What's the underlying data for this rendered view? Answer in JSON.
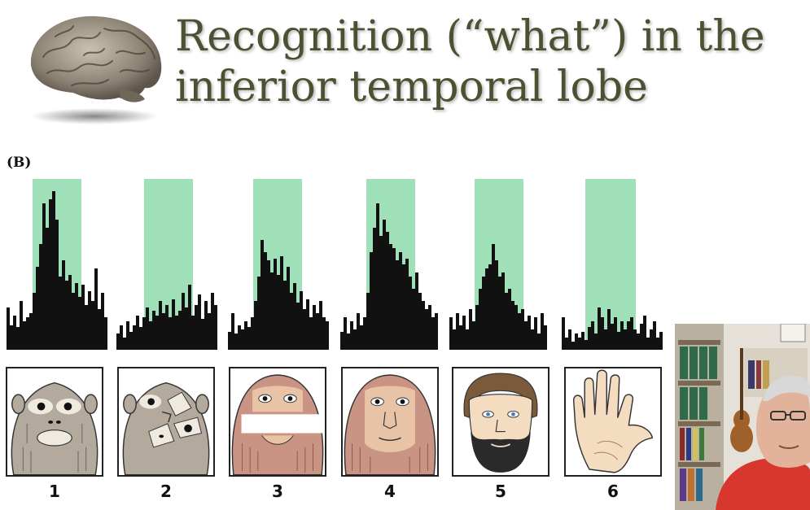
{
  "slide": {
    "title_lines": [
      "Recognition (“what”) in the",
      "inferior temporal lobe"
    ],
    "panel_label": "(B)"
  },
  "colors": {
    "title": "#4a5232",
    "stimulus_window": "#9fe0b8",
    "histogram": "#111111",
    "monkey_gray": "#b3a99c",
    "monkey_pink": "#c99483",
    "skin": "#f4dcc0"
  },
  "stimuli": [
    {
      "label": "1",
      "icon": "gray-monkey-face-icon",
      "relative_response": 0.9
    },
    {
      "label": "2",
      "icon": "scrambled-monkey-face-icon",
      "relative_response": 0.35
    },
    {
      "label": "3",
      "icon": "monkey-face-eyes-masked-icon",
      "relative_response": 0.6
    },
    {
      "label": "4",
      "icon": "pink-monkey-face-icon",
      "relative_response": 0.8
    },
    {
      "label": "5",
      "icon": "bearded-man-face-icon",
      "relative_response": 0.55
    },
    {
      "label": "6",
      "icon": "hand-icon",
      "relative_response": 0.25
    }
  ],
  "webcam": {
    "icon": "presenter-video-icon"
  }
}
